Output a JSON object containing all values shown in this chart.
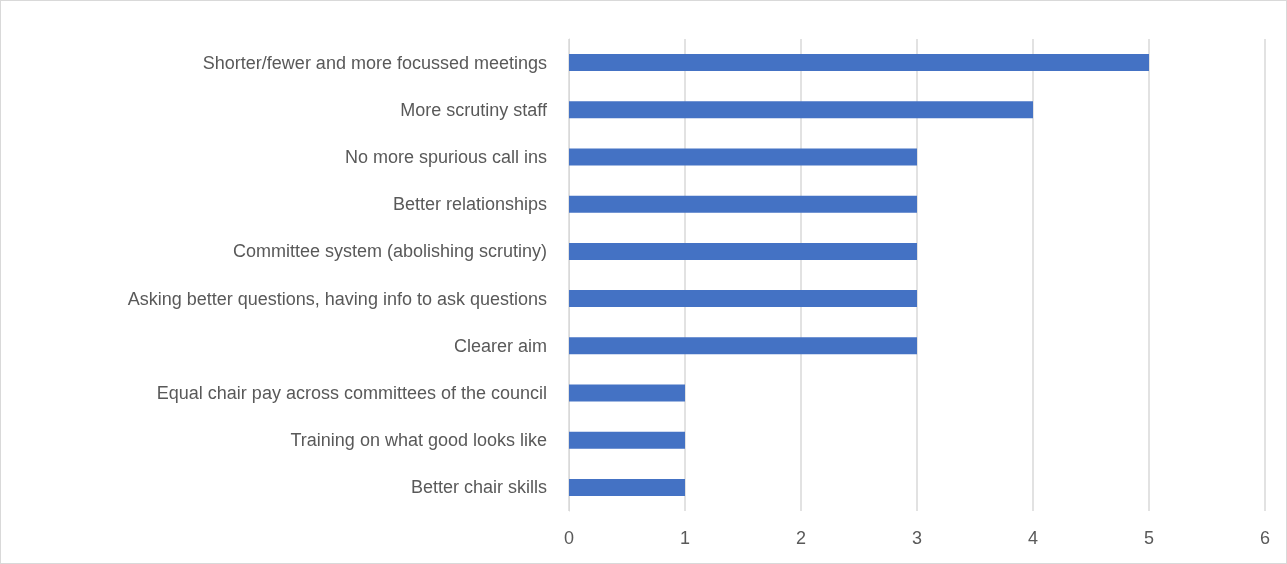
{
  "chart_data": {
    "type": "bar",
    "orientation": "horizontal",
    "categories": [
      "Shorter/fewer and more focussed meetings",
      "More scrutiny staff",
      "No more spurious call ins",
      "Better relationships",
      "Committee system (abolishing scrutiny)",
      "Asking better questions, having info to ask questions",
      "Clearer aim",
      "Equal chair pay across committees of the council",
      "Training on what good looks like",
      "Better chair skills"
    ],
    "values": [
      5,
      4,
      3,
      3,
      3,
      3,
      3,
      1,
      1,
      1
    ],
    "color": "#4472c4",
    "xlim": [
      0,
      6
    ],
    "xticks": [
      0,
      1,
      2,
      3,
      4,
      5,
      6
    ],
    "grid": "x"
  }
}
